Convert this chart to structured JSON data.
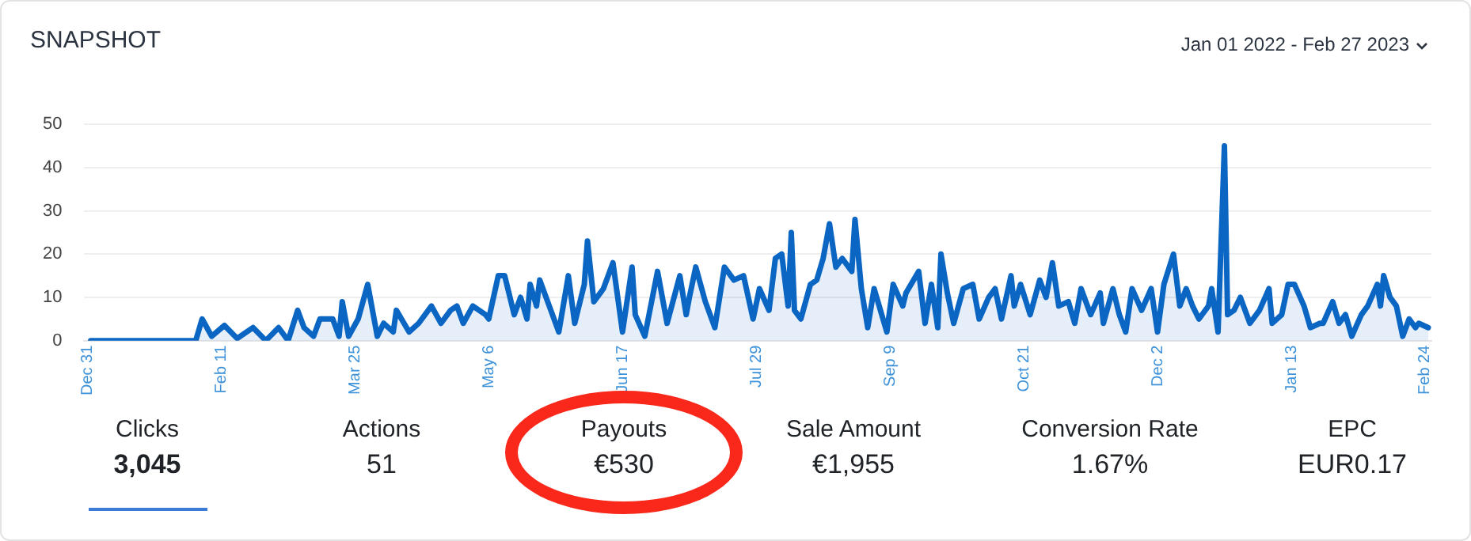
{
  "chart_data": [
    {
      "type": "area",
      "title": "SNAPSHOT",
      "subtitle": "Jan 01 2022 - Feb 27 2023",
      "x": [
        "2022-01-01",
        "2022-02-03",
        "2022-02-05",
        "2022-02-08",
        "2022-02-12",
        "2022-02-16",
        "2022-02-21",
        "2022-02-25",
        "2022-03-01",
        "2022-03-04",
        "2022-03-07",
        "2022-03-09",
        "2022-03-12",
        "2022-03-14",
        "2022-03-18",
        "2022-03-20",
        "2022-03-21",
        "2022-03-23",
        "2022-03-26",
        "2022-03-29",
        "2022-04-01",
        "2022-04-03",
        "2022-04-06",
        "2022-04-07",
        "2022-04-11",
        "2022-04-14",
        "2022-04-18",
        "2022-04-21",
        "2022-04-24",
        "2022-04-26",
        "2022-04-28",
        "2022-05-01",
        "2022-05-05",
        "2022-05-06",
        "2022-05-09",
        "2022-05-11",
        "2022-05-14",
        "2022-05-16",
        "2022-05-18",
        "2022-05-19",
        "2022-05-21",
        "2022-05-22",
        "2022-05-25",
        "2022-05-28",
        "2022-05-31",
        "2022-06-02",
        "2022-06-05",
        "2022-06-06",
        "2022-06-08",
        "2022-06-11",
        "2022-06-14",
        "2022-06-17",
        "2022-06-20",
        "2022-06-21",
        "2022-06-24",
        "2022-06-28",
        "2022-07-01",
        "2022-07-05",
        "2022-07-07",
        "2022-07-08",
        "2022-07-10",
        "2022-07-13",
        "2022-07-16",
        "2022-07-19",
        "2022-07-22",
        "2022-07-25",
        "2022-07-28",
        "2022-07-30",
        "2022-08-02",
        "2022-08-04",
        "2022-08-06",
        "2022-08-08",
        "2022-08-09",
        "2022-08-10",
        "2022-08-12",
        "2022-08-15",
        "2022-08-17",
        "2022-08-19",
        "2022-08-21",
        "2022-08-23",
        "2022-08-25",
        "2022-08-28",
        "2022-08-29",
        "2022-08-31",
        "2022-09-02",
        "2022-09-04",
        "2022-09-08",
        "2022-09-10",
        "2022-09-13",
        "2022-09-14",
        "2022-09-18",
        "2022-09-20",
        "2022-09-22",
        "2022-09-24",
        "2022-09-25",
        "2022-09-27",
        "2022-09-29",
        "2022-10-02",
        "2022-10-05",
        "2022-10-07",
        "2022-10-10",
        "2022-10-12",
        "2022-10-14",
        "2022-10-17",
        "2022-10-18",
        "2022-10-20",
        "2022-10-23",
        "2022-10-26",
        "2022-10-28",
        "2022-10-30",
        "2022-11-01",
        "2022-11-04",
        "2022-11-06",
        "2022-11-08",
        "2022-11-11",
        "2022-11-14",
        "2022-11-15",
        "2022-11-18",
        "2022-11-20",
        "2022-11-22",
        "2022-11-24",
        "2022-11-27",
        "2022-11-30",
        "2022-12-02",
        "2022-12-04",
        "2022-12-07",
        "2022-12-09",
        "2022-12-11",
        "2022-12-13",
        "2022-12-15",
        "2022-12-18",
        "2022-12-19",
        "2022-12-21",
        "2022-12-23",
        "2022-12-24",
        "2022-12-26",
        "2022-12-28",
        "2022-12-31",
        "2023-01-03",
        "2023-01-06",
        "2023-01-07",
        "2023-01-10",
        "2023-01-12",
        "2023-01-14",
        "2023-01-17",
        "2023-01-19",
        "2023-01-22",
        "2023-01-23",
        "2023-01-26",
        "2023-01-28",
        "2023-01-30",
        "2023-02-01",
        "2023-02-04",
        "2023-02-06",
        "2023-02-09",
        "2023-02-10",
        "2023-02-11",
        "2023-02-13",
        "2023-02-15",
        "2023-02-17",
        "2023-02-19",
        "2023-02-21",
        "2023-02-22",
        "2023-02-25"
      ],
      "series": [
        {
          "color": "#0a66c2",
          "values": [
            0,
            0,
            5,
            1,
            3.5,
            0.5,
            3,
            0,
            3,
            0,
            7,
            3,
            1,
            5,
            5,
            1,
            9,
            1,
            5,
            13,
            1,
            4,
            2,
            7,
            2,
            4,
            8,
            4,
            7,
            8,
            4,
            8,
            6,
            5,
            15,
            15,
            6,
            10,
            5,
            13,
            8,
            14,
            8,
            2,
            15,
            4,
            13,
            23,
            9,
            12,
            18,
            2,
            17,
            6,
            1,
            16,
            4,
            15,
            6,
            10,
            17,
            9,
            3,
            17,
            14,
            15,
            5,
            12,
            7,
            19,
            20,
            8,
            25,
            7,
            5,
            13,
            14,
            19,
            27,
            17,
            19,
            16,
            28,
            12,
            3,
            12,
            2,
            13,
            8,
            11,
            16,
            4,
            13,
            3,
            20,
            11,
            4,
            12,
            13,
            5,
            10,
            12,
            5,
            15,
            8,
            13,
            6,
            14,
            10,
            18,
            8,
            9,
            4,
            12,
            6,
            11,
            4,
            12,
            6,
            2,
            12,
            7,
            12,
            2,
            13,
            20,
            8,
            12,
            8,
            5,
            8,
            12,
            2,
            45,
            6,
            7,
            10,
            4,
            7,
            12,
            4,
            6,
            13,
            13,
            8,
            3,
            4,
            4,
            9,
            4,
            6,
            1,
            6,
            8,
            13,
            8,
            15,
            10,
            8,
            1,
            5,
            3,
            4,
            3
          ]
        }
      ],
      "xlim": [
        "2021-12-30",
        "2023-02-26"
      ],
      "xticks": [
        {
          "value": "2021-12-31",
          "label": "Dec 31"
        },
        {
          "value": "2022-02-11",
          "label": "Feb 11"
        },
        {
          "value": "2022-03-25",
          "label": "Mar 25"
        },
        {
          "value": "2022-05-06",
          "label": "May 6"
        },
        {
          "value": "2022-06-17",
          "label": "Jun 17"
        },
        {
          "value": "2022-07-29",
          "label": "Jul 29"
        },
        {
          "value": "2022-09-09",
          "label": "Sep 9"
        },
        {
          "value": "2022-10-21",
          "label": "Oct 21"
        },
        {
          "value": "2022-12-02",
          "label": "Dec 2"
        },
        {
          "value": "2023-01-13",
          "label": "Jan 13"
        },
        {
          "value": "2023-02-24",
          "label": "Feb 24"
        }
      ],
      "ylim": [
        0,
        50
      ],
      "yticks": [
        0,
        10,
        20,
        30,
        40,
        50
      ],
      "grid": "y"
    },
    {
      "type": "other",
      "categories": [
        "Clicks",
        "Actions",
        "Payouts",
        "Sale Amount",
        "Conversion Rate",
        "EPC"
      ],
      "annotations": [
        "3,045",
        "51",
        "€530",
        "€1,955",
        "1.67%",
        "EUR0.17"
      ]
    }
  ]
}
